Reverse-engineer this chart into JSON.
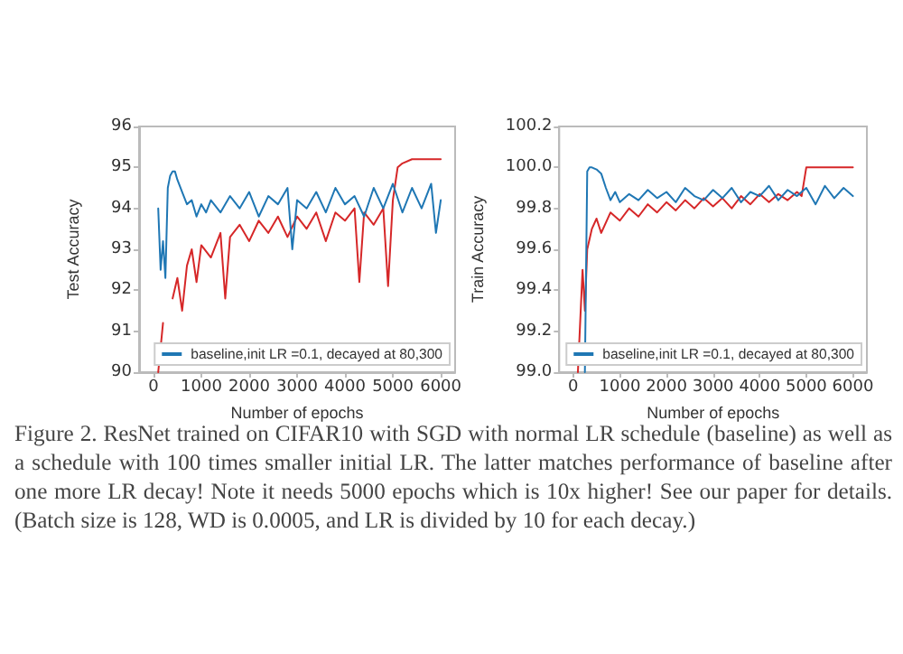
{
  "chart_data": [
    {
      "type": "line",
      "ylabel": "Test Accuracy",
      "xlabel": "Number of epochs",
      "xlim": [
        -300,
        6300
      ],
      "xticks": [
        0,
        1000,
        2000,
        3000,
        4000,
        5000,
        6000
      ],
      "ylim": [
        90,
        96
      ],
      "yticks": [
        90,
        91,
        92,
        93,
        94,
        95,
        96
      ],
      "grid": false,
      "legend": "bottom",
      "marker": "none",
      "line_style": "solid",
      "annotations": [
        "Figure 2. ResNet trained on CIFAR10 with SGD with normal LR schedule (baseline) as well as a schedule with 100 times smaller initial LR. The latter matches performance of baseline after one more LR decay! Note it needs 5000 epochs which is 10x higher! See our paper for details. (Batch size is 128, WD is 0.0005, and LR is divided by 10 for each decay.)"
      ],
      "series": [
        {
          "color": "#d62728",
          "x": [
            100,
            200,
            300,
            400,
            500,
            600,
            700,
            800,
            900,
            1000,
            1200,
            1400,
            1500,
            1600,
            1800,
            2000,
            2200,
            2400,
            2600,
            2800,
            3000,
            3200,
            3400,
            3600,
            3800,
            4000,
            4200,
            4300,
            4400,
            4600,
            4800,
            4900,
            5000,
            5100,
            5200,
            5400,
            5600,
            5800,
            6000
          ],
          "values": [
            90.0,
            91.2,
            null,
            91.8,
            92.3,
            91.5,
            92.6,
            93.0,
            92.2,
            93.1,
            92.8,
            93.4,
            91.8,
            93.3,
            93.6,
            93.2,
            93.7,
            93.4,
            93.8,
            93.3,
            93.8,
            93.5,
            93.9,
            93.2,
            93.9,
            93.7,
            94.0,
            92.2,
            93.9,
            93.6,
            94.0,
            92.1,
            94.2,
            95.0,
            95.1,
            95.2,
            95.2,
            95.2,
            95.2
          ]
        },
        {
          "name": "baseline,init LR =0.1, decayed at 80,300",
          "color": "#1f77b4",
          "x": [
            100,
            150,
            200,
            250,
            300,
            350,
            400,
            450,
            500,
            600,
            700,
            800,
            900,
            1000,
            1100,
            1200,
            1400,
            1600,
            1800,
            2000,
            2200,
            2400,
            2600,
            2800,
            2900,
            3000,
            3200,
            3400,
            3600,
            3800,
            4000,
            4200,
            4400,
            4600,
            4800,
            5000,
            5200,
            5400,
            5600,
            5800,
            5900,
            6000
          ],
          "values": [
            94.0,
            92.5,
            93.2,
            92.3,
            94.5,
            94.8,
            94.9,
            94.9,
            94.7,
            94.4,
            94.1,
            94.2,
            93.8,
            94.1,
            93.9,
            94.2,
            93.9,
            94.3,
            94.0,
            94.4,
            93.8,
            94.3,
            94.1,
            94.5,
            93.0,
            94.2,
            94.0,
            94.4,
            93.9,
            94.5,
            94.1,
            94.3,
            93.8,
            94.5,
            94.0,
            94.6,
            93.9,
            94.5,
            94.0,
            94.6,
            93.4,
            94.2
          ]
        }
      ]
    },
    {
      "type": "line",
      "ylabel": "Train Accuracy",
      "xlabel": "Number of epochs",
      "xlim": [
        -300,
        6300
      ],
      "xticks": [
        0,
        1000,
        2000,
        3000,
        4000,
        5000,
        6000
      ],
      "ylim": [
        99.0,
        100.2
      ],
      "yticks": [
        {
          "value": 99,
          "label": "99.0"
        },
        99.2,
        99.4,
        99.6,
        99.8,
        {
          "value": 100,
          "label": "100.0"
        },
        100.2
      ],
      "grid": false,
      "legend": "bottom",
      "marker": "none",
      "line_style": "solid",
      "series": [
        {
          "color": "#d62728",
          "x": [
            100,
            200,
            250,
            300,
            400,
            500,
            600,
            800,
            1000,
            1200,
            1400,
            1600,
            1800,
            2000,
            2200,
            2400,
            2600,
            2800,
            3000,
            3200,
            3400,
            3600,
            3800,
            4000,
            4200,
            4400,
            4600,
            4800,
            4900,
            5000,
            5500,
            6000
          ],
          "values": [
            99.0,
            99.5,
            99.3,
            99.6,
            99.7,
            99.75,
            99.68,
            99.78,
            99.74,
            99.8,
            99.76,
            99.82,
            99.78,
            99.83,
            99.79,
            99.84,
            99.8,
            99.85,
            99.81,
            99.85,
            99.8,
            99.86,
            99.82,
            99.87,
            99.83,
            99.87,
            99.84,
            99.88,
            99.86,
            100.0,
            100.0,
            100.0
          ]
        },
        {
          "name": "baseline,init LR =0.1, decayed at 80,300",
          "color": "#1f77b4",
          "x": [
            250,
            300,
            350,
            400,
            500,
            600,
            700,
            800,
            900,
            1000,
            1200,
            1400,
            1600,
            1800,
            2000,
            2200,
            2400,
            2600,
            2800,
            3000,
            3200,
            3400,
            3600,
            3800,
            4000,
            4200,
            4400,
            4600,
            4800,
            5000,
            5200,
            5400,
            5600,
            5800,
            6000
          ],
          "values": [
            99.0,
            99.98,
            100.0,
            100.0,
            99.99,
            99.97,
            99.9,
            99.84,
            99.88,
            99.83,
            99.87,
            99.84,
            99.89,
            99.85,
            99.88,
            99.83,
            99.9,
            99.86,
            99.84,
            99.89,
            99.85,
            99.9,
            99.83,
            99.88,
            99.86,
            99.91,
            99.84,
            99.89,
            99.86,
            99.9,
            99.82,
            99.91,
            99.85,
            99.9,
            99.86
          ]
        }
      ]
    }
  ]
}
